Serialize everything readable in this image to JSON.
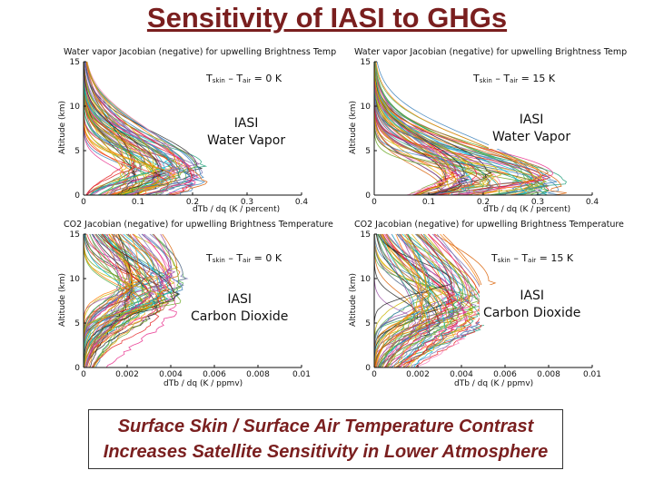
{
  "slide": {
    "title": "Sensitivity of IASI to GHGs",
    "caption_line1": "Surface Skin / Surface Air Temperature Contrast",
    "caption_line2": "Increases Satellite Sensitivity in Lower Atmosphere"
  },
  "colors": {
    "title": "#7a1f1f",
    "caption": "#7a1f1f"
  },
  "chart_data": [
    {
      "type": "line",
      "title": "Water vapor Jacobian (negative) for upwelling Brightness Temperature",
      "xlabel": "dTb / dq (K / percent)",
      "ylabel": "Altitude (km)",
      "xlim": [
        0,
        0.4
      ],
      "ylim": [
        0,
        15
      ],
      "xticks": [
        "0",
        "0.1",
        "0.2",
        "0.3",
        "0.4"
      ],
      "yticks": [
        "0",
        "5",
        "10",
        "15"
      ],
      "condition": {
        "t1": "T",
        "s1": "skin",
        "mid": " – T",
        "s2": "air",
        "value": " = 0 K"
      },
      "gas_line1": "IASI",
      "gas_line2": "Water Vapor",
      "series_profile": {
        "peak_x": 0.21,
        "peak_alt": 2.5,
        "spread": 3.0
      }
    },
    {
      "type": "line",
      "title": "Water vapor Jacobian (negative) for upwelling Brightness Temperature",
      "xlabel": "dTb / dq (K / percent)",
      "ylabel": "Altitude (km)",
      "xlim": [
        0,
        0.4
      ],
      "ylim": [
        0,
        15
      ],
      "xticks": [
        "0",
        "0.1",
        "0.2",
        "0.3",
        "0.4"
      ],
      "yticks": [
        "0",
        "5",
        "10",
        "15"
      ],
      "condition": {
        "t1": "T",
        "s1": "skin",
        "mid": " – T",
        "s2": "air",
        "value": " = 15 K"
      },
      "gas_line1": "IASI",
      "gas_line2": "Water Vapor",
      "series_profile": {
        "peak_x": 0.33,
        "peak_alt": 1.5,
        "spread": 2.6
      }
    },
    {
      "type": "line",
      "title": "CO2 Jacobian (negative) for upwelling Brightness Temperature",
      "xlabel": "dTb / dq (K / ppmv)",
      "ylabel": "Altitude (km)",
      "xlim": [
        0,
        0.01
      ],
      "ylim": [
        0,
        15
      ],
      "xticks": [
        "0",
        "0.002",
        "0.004",
        "0.006",
        "0.008",
        "0.01"
      ],
      "yticks": [
        "0",
        "5",
        "10",
        "15"
      ],
      "condition": {
        "t1": "T",
        "s1": "skin",
        "mid": " – T",
        "s2": "air",
        "value": " = 0 K"
      },
      "gas_line1": "IASI",
      "gas_line2": "Carbon Dioxide",
      "series_profile": {
        "peak_x": 0.0045,
        "peak_alt": 9.0,
        "spread": 5.0
      }
    },
    {
      "type": "line",
      "title": "CO2 Jacobian (negative) for upwelling Brightness Temperature",
      "xlabel": "dTb / dq (K / ppmv)",
      "ylabel": "Altitude (km)",
      "xlim": [
        0,
        0.01
      ],
      "ylim": [
        0,
        15
      ],
      "xticks": [
        "0",
        "0.002",
        "0.004",
        "0.006",
        "0.008",
        "0.01"
      ],
      "yticks": [
        "0",
        "5",
        "10",
        "15"
      ],
      "condition": {
        "t1": "T",
        "s1": "skin",
        "mid": " – T",
        "s2": "air",
        "value": " = 15 K"
      },
      "gas_line1": "IASI",
      "gas_line2": "Carbon Dioxide",
      "series_profile": {
        "peak_x": 0.005,
        "peak_alt": 7.0,
        "spread": 5.5
      }
    }
  ]
}
